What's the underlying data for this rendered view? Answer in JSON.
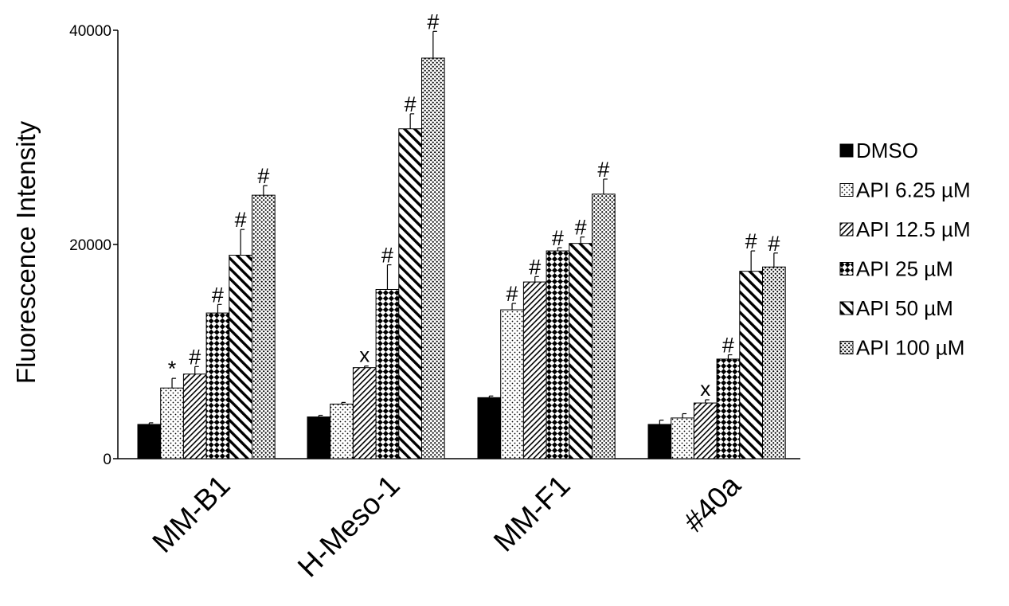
{
  "chart_data": {
    "type": "bar",
    "title": "",
    "xlabel": "",
    "ylabel": "Fluorescence Intensity",
    "ylim": [
      0,
      40000
    ],
    "yticks": [
      0,
      20000,
      40000
    ],
    "ytick_labels": [
      "0",
      "20000",
      "40000"
    ],
    "grid": false,
    "legend_position": "right",
    "categories": [
      "MM-B1",
      "H-Meso-1",
      "MM-F1",
      "#40a"
    ],
    "series": [
      {
        "name": "DMSO",
        "pattern": "solid",
        "values": [
          3200,
          3900,
          5700,
          3200
        ],
        "errors": [
          150,
          150,
          150,
          400
        ],
        "annotations": [
          "",
          "",
          "",
          ""
        ]
      },
      {
        "name": "API 6.25 µM",
        "pattern": "dots",
        "values": [
          6600,
          5100,
          13900,
          3800
        ],
        "errors": [
          900,
          150,
          600,
          400
        ],
        "annotations": [
          "*",
          "",
          "#",
          ""
        ]
      },
      {
        "name": "API 12.5 µM",
        "pattern": "backslash",
        "values": [
          7900,
          8500,
          16500,
          5200
        ],
        "errors": [
          700,
          150,
          500,
          300
        ],
        "annotations": [
          "#",
          "x",
          "#",
          "x"
        ]
      },
      {
        "name": "API 25 µM",
        "pattern": "checker",
        "values": [
          13600,
          15800,
          19400,
          9300
        ],
        "errors": [
          800,
          2300,
          300,
          400
        ],
        "annotations": [
          "#",
          "#",
          "#",
          "#"
        ]
      },
      {
        "name": "API 50 µM",
        "pattern": "forward",
        "values": [
          19000,
          30800,
          20100,
          17500
        ],
        "errors": [
          2400,
          1400,
          600,
          1900
        ],
        "annotations": [
          "#",
          "#",
          "#",
          "#"
        ]
      },
      {
        "name": "API 100 µM",
        "pattern": "dense-dots",
        "values": [
          24600,
          37400,
          24700,
          17900
        ],
        "errors": [
          900,
          2500,
          1400,
          1300
        ],
        "annotations": [
          "#",
          "#",
          "#",
          "#"
        ]
      }
    ]
  }
}
